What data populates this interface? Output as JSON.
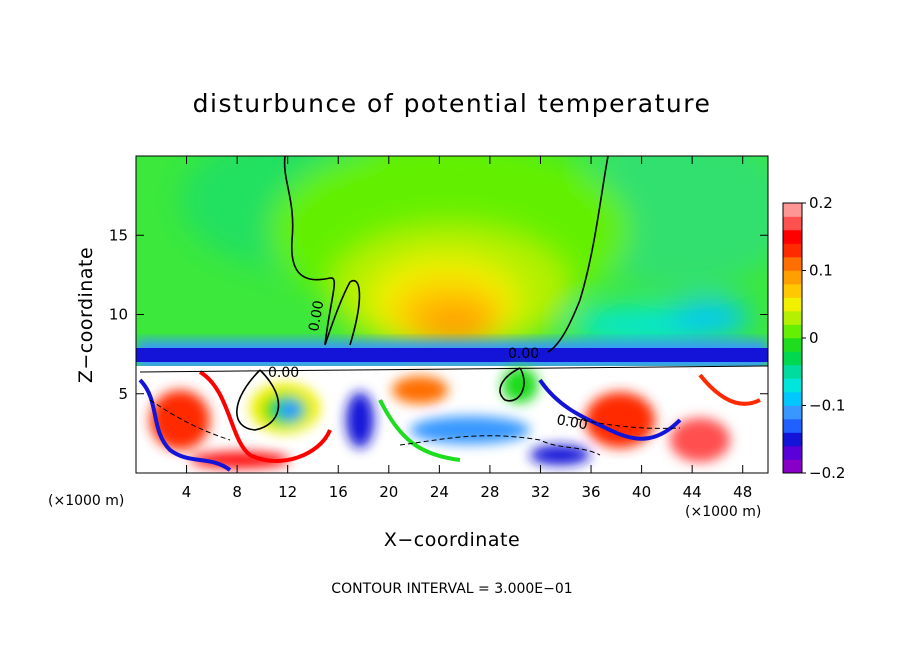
{
  "chart_data": {
    "type": "heatmap",
    "title": "disturbunce of potential temperature",
    "xlabel": "X−coordinate",
    "ylabel": "Z−coordinate",
    "x_unit": "(×1000 m)",
    "xlim": [
      0,
      50
    ],
    "ylim": [
      0,
      20
    ],
    "x_ticks": [
      4,
      8,
      12,
      16,
      20,
      24,
      28,
      32,
      36,
      40,
      44,
      48
    ],
    "y_ticks": [
      5,
      10,
      15
    ],
    "colorbar": {
      "range": [
        -0.2,
        0.2
      ],
      "tick_labels": [
        "0.2",
        "0.1",
        "0",
        "−0.1",
        "−0.2"
      ],
      "tick_values": [
        0.2,
        0.1,
        0,
        -0.1,
        -0.2
      ],
      "colors": [
        "#8800c8",
        "#5a00d8",
        "#1414d8",
        "#2060ff",
        "#3898ff",
        "#00c8ff",
        "#00e6dc",
        "#00dca0",
        "#00d850",
        "#1edc1e",
        "#64f000",
        "#b4f000",
        "#f0f000",
        "#ffc800",
        "#ffa000",
        "#ff6e00",
        "#ff2a00",
        "#ff0000",
        "#ff5050",
        "#ff9696"
      ]
    },
    "contour_labels": [
      "0.00",
      "0.00",
      "0.00",
      "0.00"
    ],
    "contour_interval_note": "CONTOUR INTERVAL = 3.000E−01"
  }
}
